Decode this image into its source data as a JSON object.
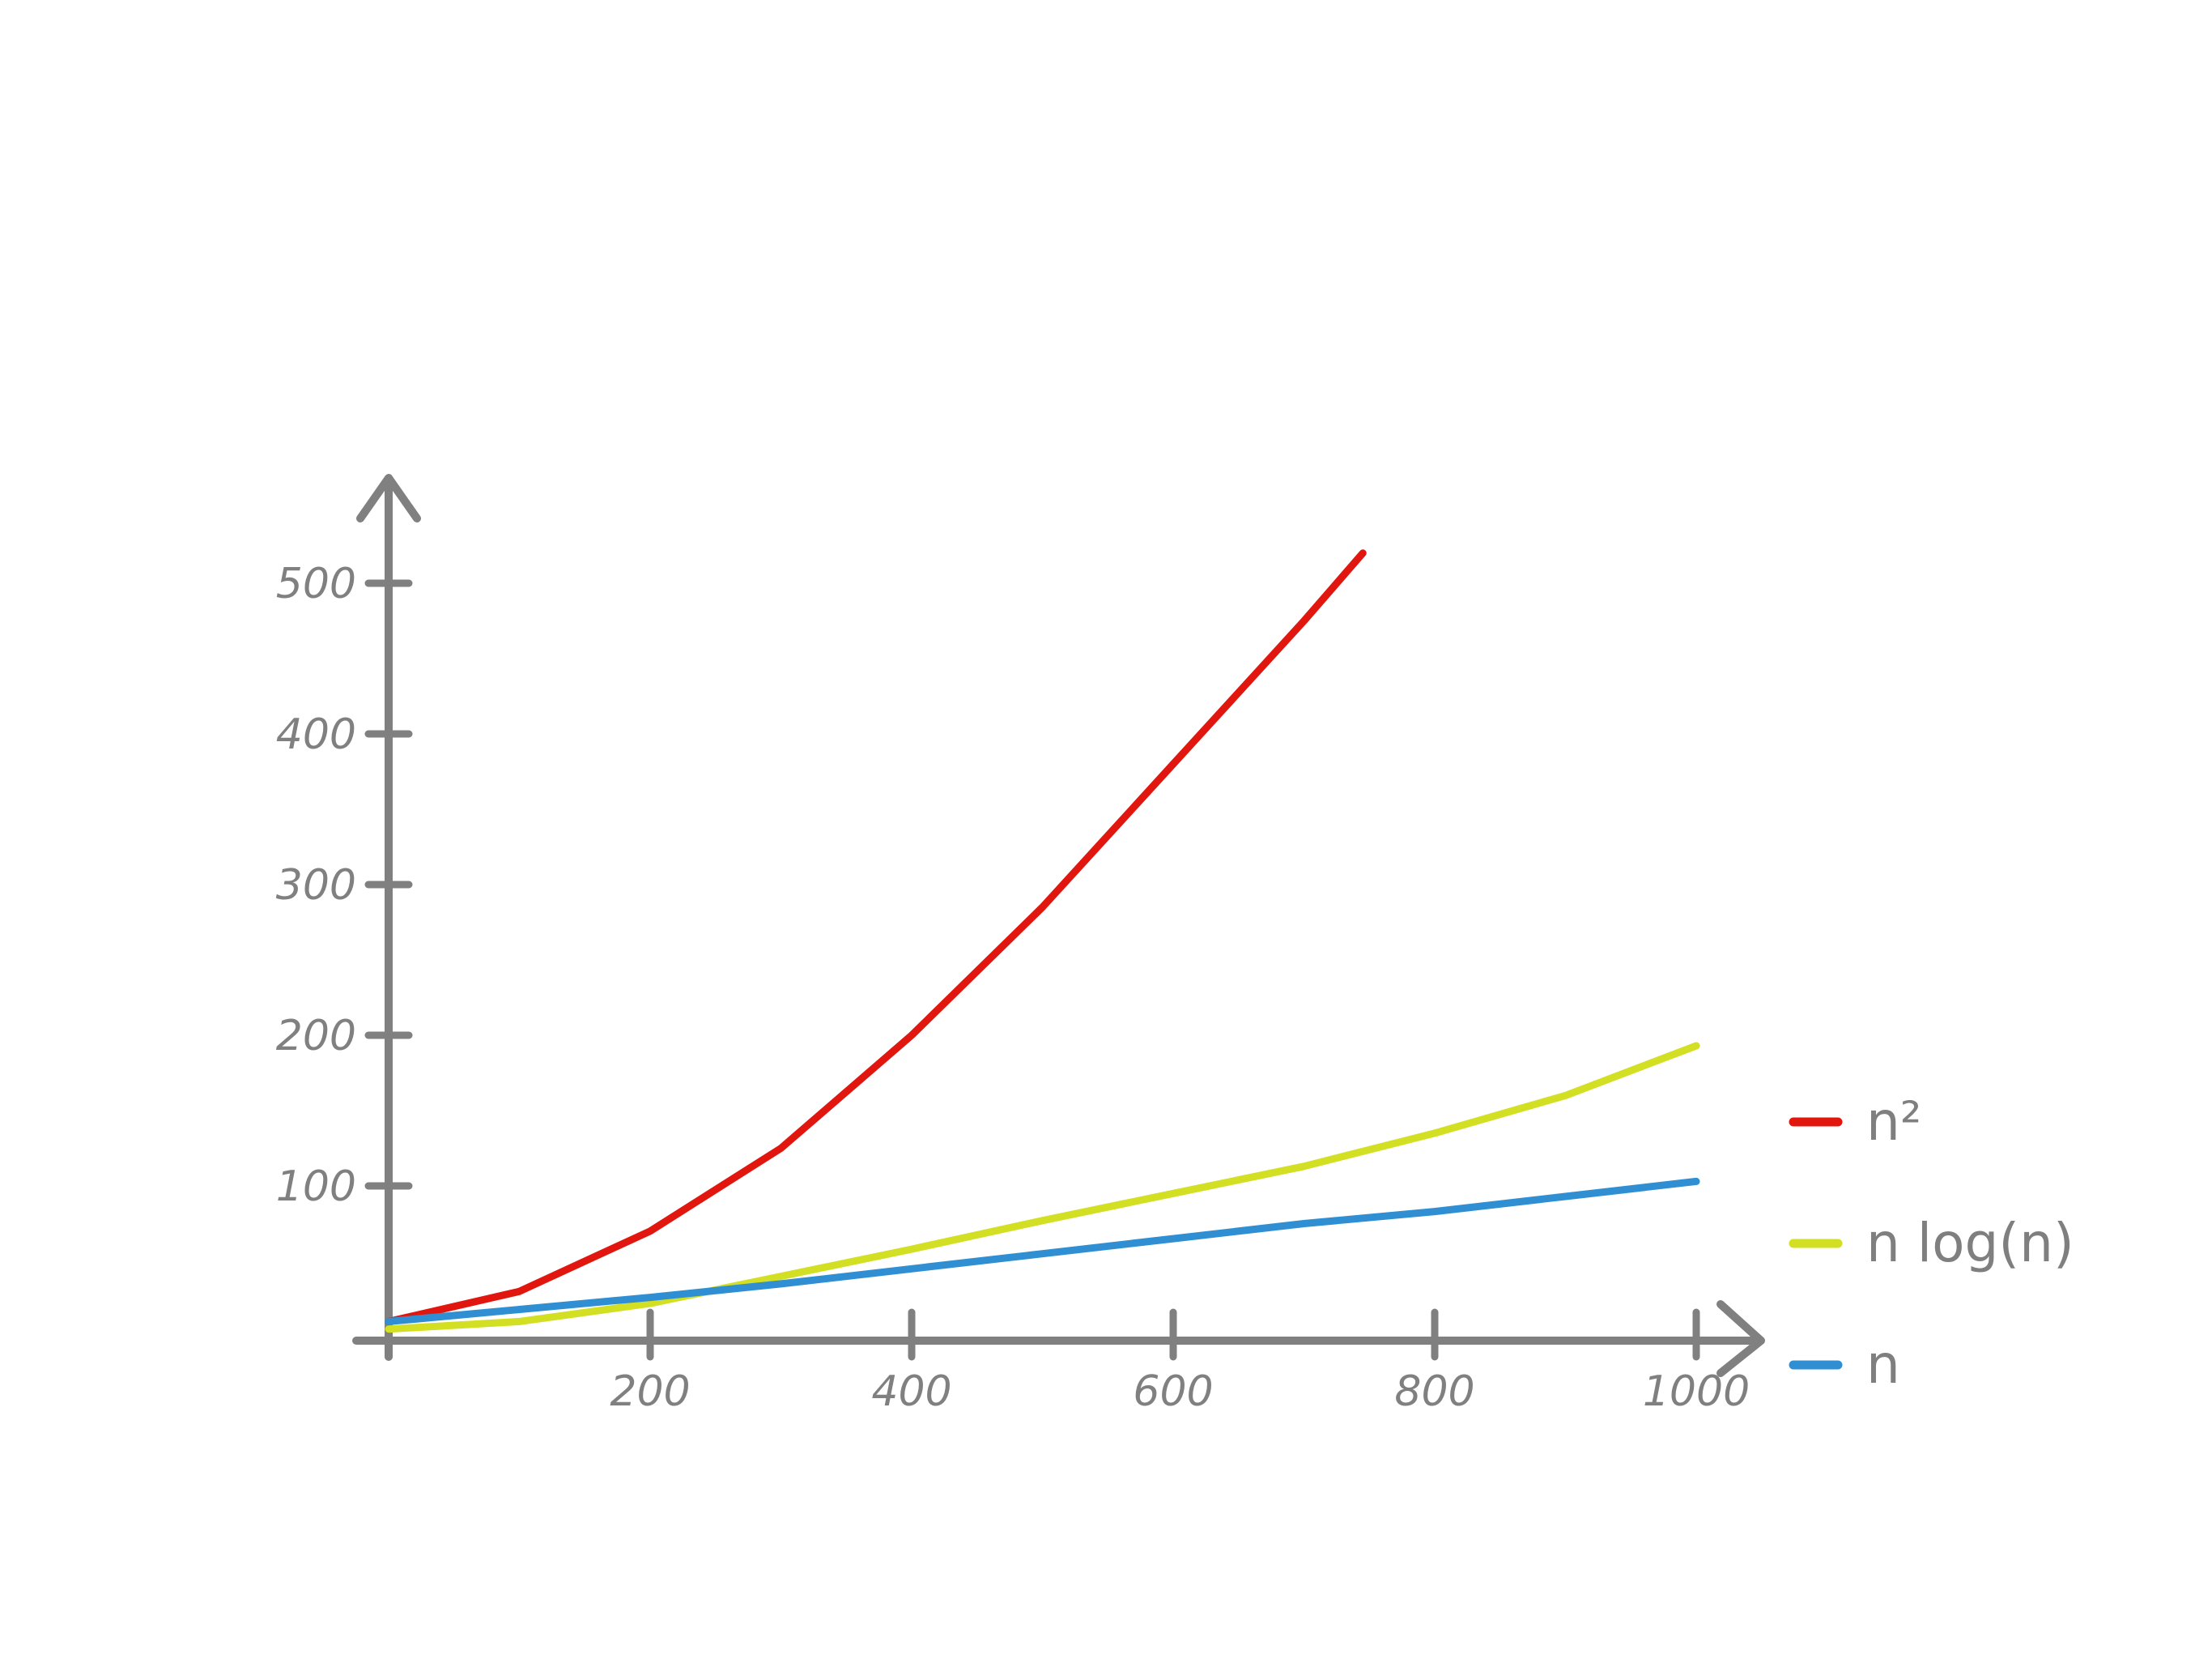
{
  "chart_data": {
    "type": "line",
    "title": "",
    "xlabel": "",
    "ylabel": "",
    "x_ticks": [
      "200",
      "400",
      "600",
      "800",
      "1000"
    ],
    "y_ticks": [
      "100",
      "200",
      "300",
      "400",
      "500"
    ],
    "xlim": [
      0,
      1000
    ],
    "ylim": [
      0,
      500
    ],
    "grid": false,
    "legend_position": "right",
    "series": [
      {
        "name": "n²",
        "color": "#e1170f",
        "x": [
          0,
          100,
          200,
          300,
          400,
          500,
          600,
          700,
          745
        ],
        "y": [
          10,
          30,
          70,
          125,
          200,
          285,
          380,
          475,
          520
        ]
      },
      {
        "name": "n log(n)",
        "color": "#d2df22",
        "x": [
          0,
          100,
          200,
          300,
          400,
          500,
          600,
          700,
          800,
          900,
          1000
        ],
        "y": [
          5,
          10,
          22,
          40,
          58,
          77,
          95,
          113,
          135,
          160,
          193
        ]
      },
      {
        "name": "n",
        "color": "#2f8fd2",
        "x": [
          0,
          100,
          200,
          300,
          400,
          500,
          600,
          700,
          800,
          900,
          1000
        ],
        "y": [
          10,
          18,
          26,
          35,
          45,
          55,
          65,
          75,
          83,
          93,
          103
        ]
      }
    ]
  },
  "legend": [
    {
      "label": "n²",
      "color": "#e1170f"
    },
    {
      "label": "n log(n)",
      "color": "#d2df22"
    },
    {
      "label": "n",
      "color": "#2f8fd2"
    }
  ],
  "axis_color": "#808080"
}
